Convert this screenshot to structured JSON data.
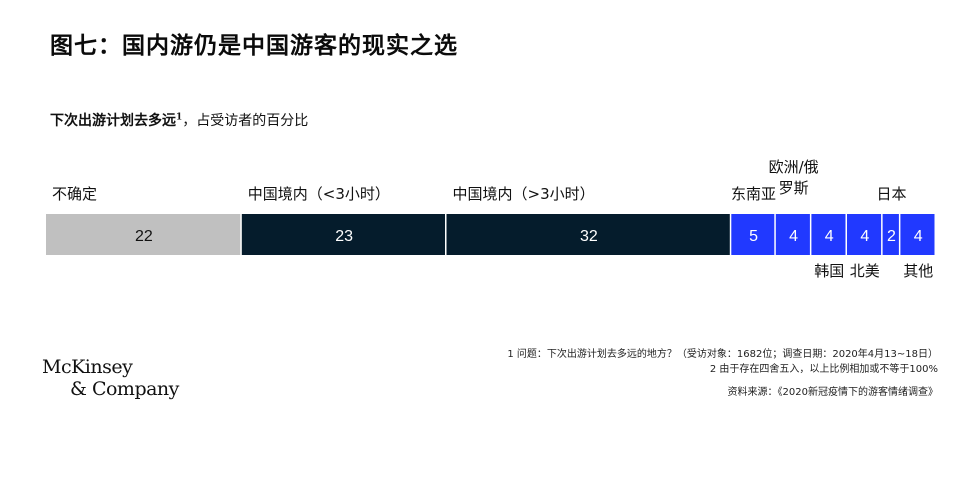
{
  "title": "图七：国内游仍是中国游客的现实之选",
  "subtitle": {
    "bold_text": "下次出游计划去多远",
    "footnote_mark": "1",
    "rest": "，占受访者的百分比"
  },
  "chart_data": {
    "type": "bar",
    "orientation": "horizontal-stacked",
    "total": 100,
    "categories": [
      "不确定",
      "中国境内（<3小时）",
      "中国境内（>3小时）",
      "东南亚",
      "欧洲/俄罗斯",
      "韩国",
      "北美",
      "日本",
      "其他"
    ],
    "values": [
      22,
      23,
      32,
      5,
      4,
      4,
      4,
      2,
      4
    ],
    "label_positions": [
      "top",
      "top",
      "top",
      "top",
      "top",
      "bottom",
      "bottom",
      "top",
      "bottom"
    ],
    "colors": [
      "#c0c0c0",
      "#051c2c",
      "#051c2c",
      "#2139ff",
      "#2139ff",
      "#2139ff",
      "#2139ff",
      "#2139ff",
      "#2139ff"
    ],
    "value_label_colors": [
      "#111111",
      "#ffffff",
      "#ffffff",
      "#ffffff",
      "#ffffff",
      "#ffffff",
      "#ffffff",
      "#ffffff",
      "#ffffff"
    ]
  },
  "footnotes": {
    "note1": "1 问题：下次出游计划去多远的地方？（受访对象：1682位；调查日期：2020年4月13~18日）",
    "note2": "2 由于存在四舍五入，以上比例相加或不等于100%",
    "source": "资料来源：《2020新冠疫情下的游客情绪调查》"
  },
  "logo": {
    "line1": "McKinsey",
    "line2": "& Company"
  }
}
